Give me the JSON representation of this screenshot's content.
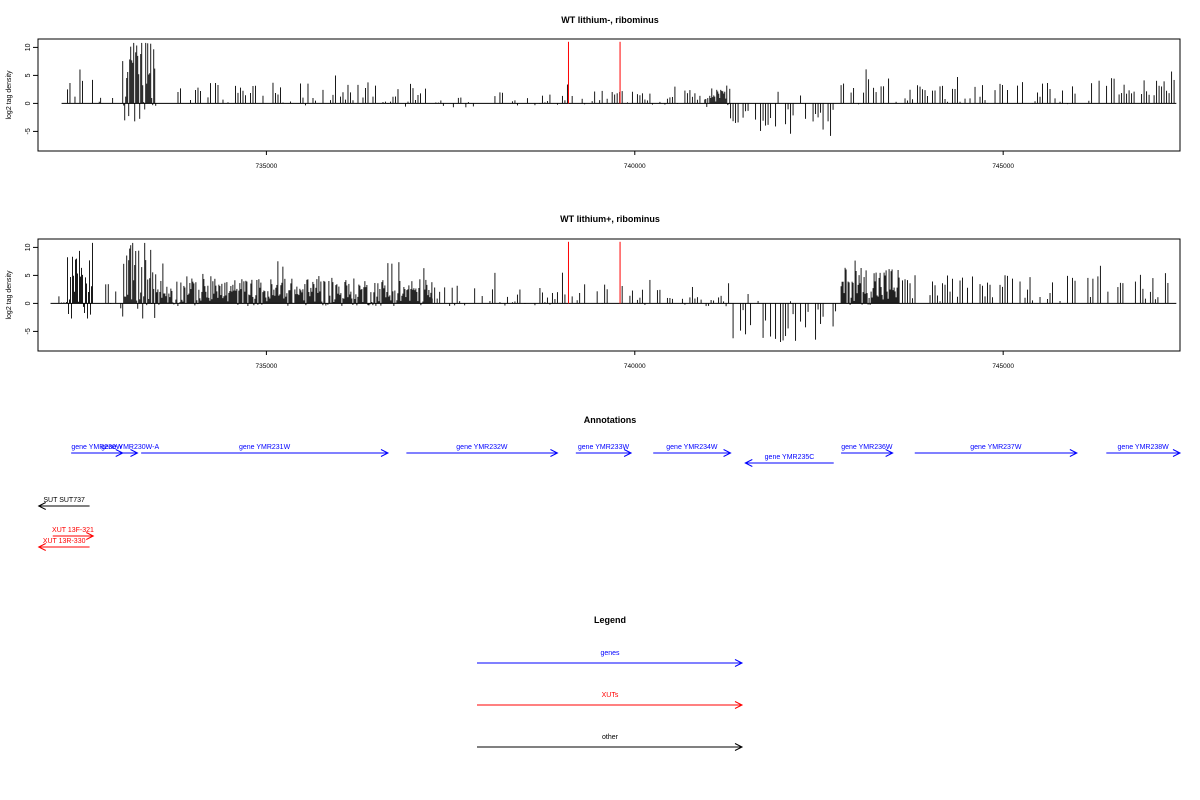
{
  "chart_data": [
    {
      "type": "bar",
      "title": "WT lithium-, ribominus",
      "ylabel": "log2 tag density",
      "xlim": [
        731900,
        747400
      ],
      "ylim": [
        -8.5,
        11.5
      ],
      "yticks": [
        -5,
        0,
        5,
        10
      ],
      "xticks": [
        735000,
        740000,
        745000
      ],
      "grid": false,
      "series": [
        {
          "color": "#000000",
          "segments": [
            [
              732300,
              732650,
              2.5,
              6,
              1
            ],
            [
              732650,
              732800,
              0.3,
              1.2,
              0
            ],
            [
              732750,
              733050,
              0.3,
              1,
              0
            ],
            [
              733050,
              733500,
              3.5,
              8,
              2
            ],
            [
              733800,
              737250,
              1.5,
              2.2,
              1
            ],
            [
              737300,
              737950,
              0.8,
              1.5,
              1
            ],
            [
              738000,
              739100,
              0.8,
              1.2,
              1
            ],
            [
              739150,
              739850,
              1.0,
              1.5,
              1
            ],
            [
              739900,
              740900,
              1.0,
              1.5,
              1
            ],
            [
              740950,
              741300,
              1.2,
              2,
              2
            ],
            [
              741300,
              742700,
              -3.5,
              2.5,
              1
            ],
            [
              742800,
              743600,
              2.3,
              2.5,
              1
            ],
            [
              743600,
              746000,
              1.8,
              2.0,
              1
            ],
            [
              746000,
              746200,
              0.6,
              1,
              0
            ],
            [
              746200,
              747350,
              2.8,
              1.5,
              1
            ]
          ]
        },
        {
          "color": "#ff0000",
          "spikes": [
            [
              739100,
              11
            ],
            [
              739800,
              11
            ]
          ]
        }
      ]
    },
    {
      "type": "bar",
      "title": "WT lithium+, ribominus",
      "ylabel": "log2 tag density",
      "xlim": [
        731900,
        747400
      ],
      "ylim": [
        -8.5,
        11.5
      ],
      "yticks": [
        -5,
        0,
        5,
        10
      ],
      "xticks": [
        735000,
        740000,
        745000
      ],
      "grid": false,
      "series": [
        {
          "color": "#000000",
          "segments": [
            [
              732150,
              732300,
              0.6,
              1,
              1
            ],
            [
              732300,
              732650,
              3,
              6,
              2
            ],
            [
              732650,
              733050,
              1.5,
              2.5,
              1
            ],
            [
              733050,
              733500,
              3.5,
              7,
              2
            ],
            [
              733500,
              737250,
              2.0,
              2.5,
              2
            ],
            [
              737250,
              738000,
              1.5,
              2,
              1
            ],
            [
              738000,
              739100,
              1.0,
              1.8,
              1
            ],
            [
              739150,
              739850,
              1.5,
              2,
              1
            ],
            [
              739900,
              740900,
              1.0,
              1.5,
              1
            ],
            [
              740900,
              741300,
              1.8,
              2.5,
              1
            ],
            [
              741300,
              742750,
              -4,
              3,
              1
            ],
            [
              742800,
              743600,
              3.2,
              3.5,
              2
            ],
            [
              743600,
              746000,
              2.6,
              2.5,
              1
            ],
            [
              746000,
              746150,
              0.8,
              1,
              0
            ],
            [
              746150,
              747350,
              3.2,
              2.5,
              1
            ]
          ]
        },
        {
          "color": "#ff0000",
          "spikes": [
            [
              739100,
              11
            ],
            [
              739800,
              11
            ]
          ]
        }
      ]
    }
  ],
  "annotations": {
    "title": "Annotations",
    "items": [
      {
        "label": "gene YMR230W",
        "start": 732350,
        "end": 733050,
        "strand": "+",
        "kind": "genes",
        "row": 0
      },
      {
        "label": "gene YMR230W-A",
        "start": 733050,
        "end": 733250,
        "strand": "+",
        "kind": "genes",
        "row": 0
      },
      {
        "label": "gene YMR231W",
        "start": 733300,
        "end": 736650,
        "strand": "+",
        "kind": "genes",
        "row": 0
      },
      {
        "label": "gene YMR232W",
        "start": 736900,
        "end": 738950,
        "strand": "+",
        "kind": "genes",
        "row": 0
      },
      {
        "label": "gene YMR233W",
        "start": 739200,
        "end": 739950,
        "strand": "+",
        "kind": "genes",
        "row": 0
      },
      {
        "label": "gene YMR234W",
        "start": 740250,
        "end": 741300,
        "strand": "+",
        "kind": "genes",
        "row": 0
      },
      {
        "label": "gene YMR235C",
        "start": 741500,
        "end": 742700,
        "strand": "-",
        "kind": "genes",
        "row": 1
      },
      {
        "label": "gene YMR236W",
        "start": 742800,
        "end": 743500,
        "strand": "+",
        "kind": "genes",
        "row": 0
      },
      {
        "label": "gene YMR237W",
        "start": 743800,
        "end": 746000,
        "strand": "+",
        "kind": "genes",
        "row": 0
      },
      {
        "label": "gene YMR238W",
        "start": 746400,
        "end": 747400,
        "strand": "+",
        "kind": "genes",
        "row": 0
      },
      {
        "label": "SUT SUT737",
        "start": 731910,
        "end": 732600,
        "strand": "-",
        "kind": "other",
        "row": 2
      },
      {
        "label": "XUT 13F-321",
        "start": 732100,
        "end": 732650,
        "strand": "+",
        "kind": "XUTs",
        "row": 3
      },
      {
        "label": "XUT 13R-330",
        "start": 731910,
        "end": 732600,
        "strand": "-",
        "kind": "XUTs",
        "row": 4
      }
    ]
  },
  "legend": {
    "title": "Legend",
    "items": [
      {
        "label": "genes",
        "color": "#0000ff"
      },
      {
        "label": "XUTs",
        "color": "#ff0000"
      },
      {
        "label": "other",
        "color": "#000000"
      }
    ]
  },
  "colors": {
    "genes": "#0000ff",
    "XUTs": "#ff0000",
    "other": "#000000"
  }
}
